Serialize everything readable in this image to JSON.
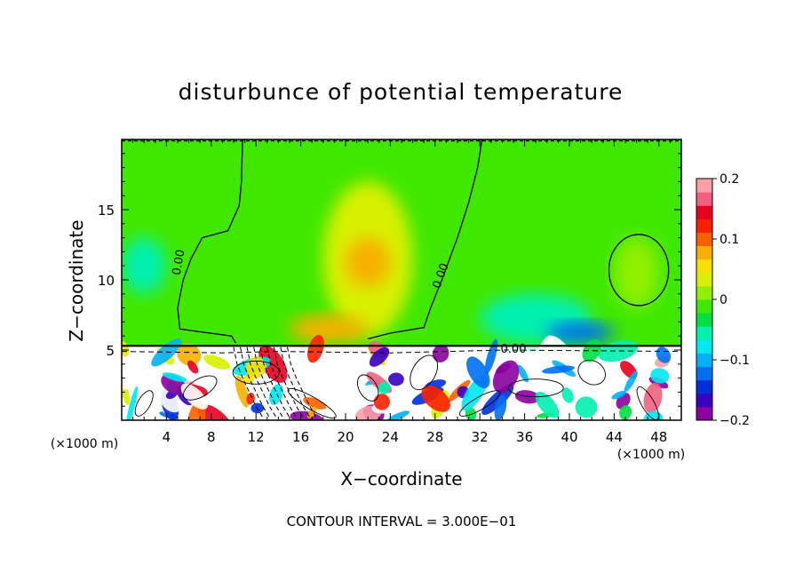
{
  "chart_data": {
    "type": "heatmap",
    "title": "disturbunce of potential temperature",
    "xlabel": "X−coordinate",
    "ylabel": "Z−coordinate",
    "x_unit_left": "(×1000 m)",
    "x_unit_right": "(×1000 m)",
    "xlim": [
      0,
      50
    ],
    "ylim": [
      0,
      20
    ],
    "xticks": [
      4,
      8,
      12,
      16,
      20,
      24,
      28,
      32,
      36,
      40,
      44,
      48
    ],
    "yticks": [
      5,
      10,
      15
    ],
    "colorbar": {
      "range": [
        -0.2,
        0.2
      ],
      "ticks": [
        0.2,
        0.1,
        0,
        -0.1,
        -0.2
      ],
      "tick_labels": [
        "0.2",
        "0.1",
        "0",
        "−0.1",
        "−0.2"
      ],
      "colors": [
        "#8b00a0",
        "#3a00c0",
        "#0030d8",
        "#0070f0",
        "#00b0f8",
        "#00e8f0",
        "#00f0b0",
        "#00e040",
        "#40e800",
        "#90f000",
        "#d8f000",
        "#f8e000",
        "#f8b000",
        "#f86000",
        "#f82000",
        "#e80020",
        "#f06080",
        "#f8a0a8"
      ]
    },
    "contour_labels": [
      "0.00",
      "0.00",
      "0.00"
    ],
    "footer": "CONTOUR INTERVAL = 3.000E−01",
    "regions": [
      {
        "x0": 0,
        "x1": 50,
        "y0": 5.3,
        "y1": 20,
        "value": -0.02
      },
      {
        "x0": 0,
        "x1": 4,
        "y0": 9,
        "y1": 13,
        "value": -0.06
      },
      {
        "x0": 18,
        "x1": 26,
        "y0": 6,
        "y1": 17,
        "value": 0.04
      },
      {
        "x0": 20,
        "x1": 24,
        "y0": 9.5,
        "y1": 13,
        "value": 0.08
      },
      {
        "x0": 15,
        "x1": 22,
        "y0": 5.5,
        "y1": 7.5,
        "value": 0.07
      },
      {
        "x0": 32,
        "x1": 42,
        "y0": 5.5,
        "y1": 9,
        "value": -0.06
      },
      {
        "x0": 38,
        "x1": 44,
        "y0": 5.5,
        "y1": 7,
        "value": -0.12
      },
      {
        "x0": 44,
        "x1": 48,
        "y0": 8,
        "y1": 13,
        "value": 0.01
      }
    ]
  }
}
